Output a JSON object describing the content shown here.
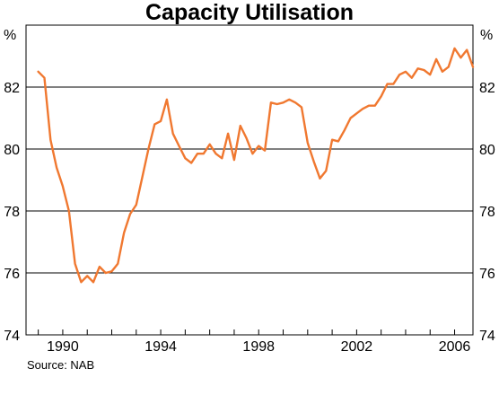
{
  "chart_data": {
    "type": "line",
    "title": "Capacity Utilisation",
    "unit_left": "%",
    "unit_right": "%",
    "source": "Source: NAB",
    "xlim": [
      1988.5,
      2006.75
    ],
    "ylim": [
      74,
      84
    ],
    "y_ticks": [
      74,
      76,
      78,
      80,
      82
    ],
    "x_ticks": [
      1990,
      1994,
      1998,
      2002,
      2006
    ],
    "grid_y": [
      76,
      78,
      80,
      82
    ],
    "line_color": "#F07830",
    "series": [
      {
        "x": [
          1989.0,
          1989.25,
          1989.5,
          1989.75,
          1990.0,
          1990.25,
          1990.5,
          1990.75,
          1991.0,
          1991.25,
          1991.5,
          1991.75,
          1992.0,
          1992.25,
          1992.5,
          1992.75,
          1993.0,
          1993.25,
          1993.5,
          1993.75,
          1994.0,
          1994.25,
          1994.5,
          1994.75,
          1995.0,
          1995.25,
          1995.5,
          1995.75,
          1996.0,
          1996.25,
          1996.5,
          1996.75,
          1997.0,
          1997.25,
          1997.5,
          1997.75,
          1998.0,
          1998.25,
          1998.5,
          1998.75,
          1999.0,
          1999.25,
          1999.5,
          1999.75,
          2000.0,
          2000.25,
          2000.5,
          2000.75,
          2001.0,
          2001.25,
          2001.5,
          2001.75,
          2002.0,
          2002.25,
          2002.5,
          2002.75,
          2003.0,
          2003.25,
          2003.5,
          2003.75,
          2004.0,
          2004.25,
          2004.5,
          2004.75,
          2005.0,
          2005.25,
          2005.5,
          2005.75,
          2006.0,
          2006.25,
          2006.5,
          2006.75
        ],
        "values": [
          82.5,
          82.3,
          80.3,
          79.4,
          78.8,
          78.0,
          76.3,
          75.7,
          75.9,
          75.7,
          76.2,
          76.0,
          76.05,
          76.3,
          77.3,
          77.9,
          78.2,
          79.1,
          80.0,
          80.8,
          80.9,
          81.6,
          80.5,
          80.1,
          79.7,
          79.55,
          79.85,
          79.85,
          80.15,
          79.85,
          79.7,
          80.5,
          79.65,
          80.75,
          80.35,
          79.85,
          80.1,
          79.95,
          81.5,
          81.45,
          81.5,
          81.6,
          81.5,
          81.35,
          80.2,
          79.6,
          79.05,
          79.3,
          80.3,
          80.25,
          80.6,
          81.0,
          81.15,
          81.3,
          81.4,
          81.4,
          81.7,
          82.1,
          82.1,
          82.4,
          82.5,
          82.3,
          82.6,
          82.55,
          82.4,
          82.9,
          82.5,
          82.65,
          83.25,
          82.95,
          83.2,
          82.65
        ]
      }
    ]
  }
}
